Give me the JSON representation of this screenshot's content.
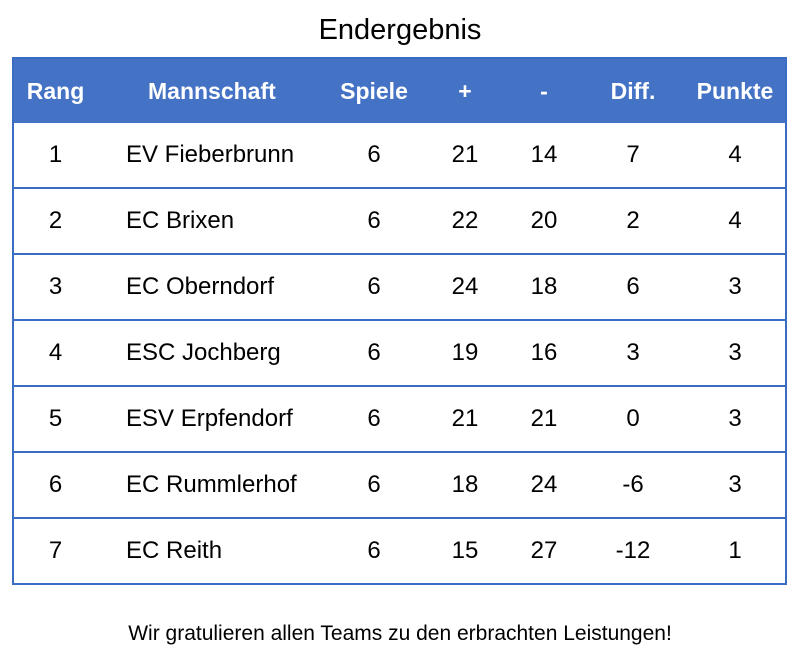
{
  "title": "Endergebnis",
  "table": {
    "headers": {
      "rank": "Rang",
      "team": "Mannschaft",
      "games": "Spiele",
      "goals_for": "+",
      "goals_against": "-",
      "diff": "Diff.",
      "points": "Punkte"
    },
    "rows": [
      {
        "rank": "1",
        "team": "EV Fieberbrunn",
        "games": "6",
        "goals_for": "21",
        "goals_against": "14",
        "diff": "7",
        "points": "4"
      },
      {
        "rank": "2",
        "team": "EC Brixen",
        "games": "6",
        "goals_for": "22",
        "goals_against": "20",
        "diff": "2",
        "points": "4"
      },
      {
        "rank": "3",
        "team": "EC Oberndorf",
        "games": "6",
        "goals_for": "24",
        "goals_against": "18",
        "diff": "6",
        "points": "3"
      },
      {
        "rank": "4",
        "team": "ESC Jochberg",
        "games": "6",
        "goals_for": "19",
        "goals_against": "16",
        "diff": "3",
        "points": "3"
      },
      {
        "rank": "5",
        "team": "ESV Erpfendorf",
        "games": "6",
        "goals_for": "21",
        "goals_against": "21",
        "diff": "0",
        "points": "3"
      },
      {
        "rank": "6",
        "team": "EC Rummlerhof",
        "games": "6",
        "goals_for": "18",
        "goals_against": "24",
        "diff": "-6",
        "points": "3"
      },
      {
        "rank": "7",
        "team": "EC Reith",
        "games": "6",
        "goals_for": "15",
        "goals_against": "27",
        "diff": "-12",
        "points": "1"
      }
    ]
  },
  "footer": "Wir gratulieren allen Teams zu den erbrachten Leistungen!",
  "colors": {
    "header_background": "#4472c4",
    "header_text": "#ffffff",
    "grid_lines": "#3b6cc4"
  }
}
